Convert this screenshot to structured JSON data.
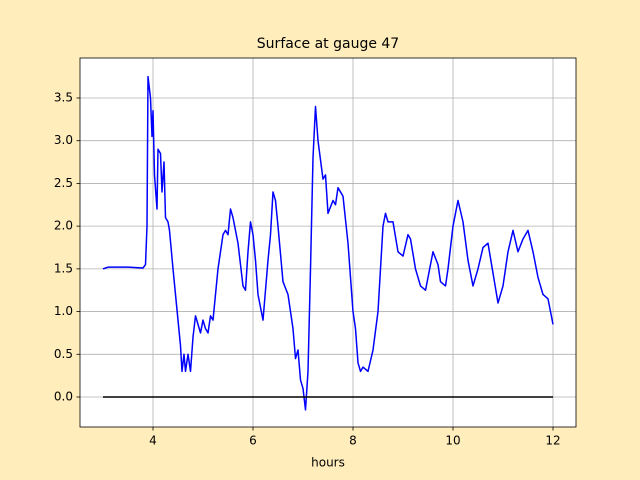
{
  "chart_data": {
    "type": "line",
    "title": "Surface at gauge 47",
    "xlabel": "hours",
    "xlim": [
      2.54,
      12.46
    ],
    "ylim": [
      -0.351,
      3.968
    ],
    "xticks": [
      4,
      6,
      8,
      10,
      12
    ],
    "yticks": [
      {
        "value": 0,
        "label": "0.0"
      },
      0.5,
      {
        "value": 1,
        "label": "1.0"
      },
      1.5,
      {
        "value": 2,
        "label": "2.0"
      },
      2.5,
      {
        "value": 3,
        "label": "3.0"
      },
      3.5
    ],
    "grid": true,
    "series": [
      {
        "color": "#0000ff",
        "x": [
          3.0,
          3.1,
          3.5,
          3.8,
          3.85,
          3.88,
          3.9,
          3.95,
          3.98,
          4.0,
          4.03,
          4.08,
          4.1,
          4.15,
          4.18,
          4.22,
          4.25,
          4.3,
          4.33,
          4.4,
          4.45,
          4.5,
          4.55,
          4.58,
          4.62,
          4.65,
          4.7,
          4.75,
          4.8,
          4.85,
          4.9,
          4.95,
          5.0,
          5.05,
          5.1,
          5.15,
          5.2,
          5.3,
          5.4,
          5.45,
          5.5,
          5.55,
          5.6,
          5.7,
          5.8,
          5.85,
          5.9,
          5.95,
          6.0,
          6.05,
          6.1,
          6.2,
          6.3,
          6.35,
          6.4,
          6.45,
          6.5,
          6.6,
          6.7,
          6.8,
          6.85,
          6.9,
          6.95,
          7.0,
          7.05,
          7.1,
          7.15,
          7.2,
          7.25,
          7.3,
          7.4,
          7.45,
          7.5,
          7.6,
          7.65,
          7.7,
          7.8,
          7.9,
          8.0,
          8.05,
          8.1,
          8.15,
          8.2,
          8.3,
          8.4,
          8.5,
          8.6,
          8.65,
          8.7,
          8.8,
          8.9,
          9.0,
          9.1,
          9.15,
          9.25,
          9.35,
          9.45,
          9.55,
          9.6,
          9.7,
          9.75,
          9.85,
          9.9,
          10.0,
          10.1,
          10.2,
          10.3,
          10.4,
          10.5,
          10.6,
          10.7,
          10.8,
          10.9,
          11.0,
          11.1,
          11.2,
          11.3,
          11.4,
          11.5,
          11.6,
          11.7,
          11.8,
          11.9,
          12.0
        ],
        "values": [
          1.5,
          1.52,
          1.52,
          1.51,
          1.55,
          2.0,
          3.75,
          3.5,
          3.05,
          3.35,
          2.6,
          2.2,
          2.9,
          2.85,
          2.4,
          2.75,
          2.1,
          2.05,
          1.95,
          1.5,
          1.2,
          0.9,
          0.6,
          0.3,
          0.5,
          0.3,
          0.5,
          0.3,
          0.7,
          0.95,
          0.85,
          0.75,
          0.9,
          0.8,
          0.75,
          0.95,
          0.9,
          1.5,
          1.9,
          1.95,
          1.9,
          2.2,
          2.1,
          1.8,
          1.3,
          1.25,
          1.7,
          2.05,
          1.9,
          1.6,
          1.2,
          0.9,
          1.6,
          1.9,
          2.4,
          2.3,
          2.0,
          1.35,
          1.2,
          0.8,
          0.45,
          0.55,
          0.2,
          0.1,
          -0.15,
          0.3,
          1.5,
          2.8,
          3.4,
          3.0,
          2.55,
          2.6,
          2.15,
          2.3,
          2.25,
          2.45,
          2.35,
          1.8,
          1.0,
          0.8,
          0.4,
          0.3,
          0.35,
          0.3,
          0.55,
          1.0,
          2.0,
          2.15,
          2.05,
          2.05,
          1.7,
          1.65,
          1.9,
          1.85,
          1.5,
          1.3,
          1.25,
          1.55,
          1.7,
          1.55,
          1.35,
          1.3,
          1.5,
          2.0,
          2.3,
          2.05,
          1.6,
          1.3,
          1.5,
          1.75,
          1.8,
          1.45,
          1.1,
          1.3,
          1.7,
          1.95,
          1.7,
          1.85,
          1.95,
          1.7,
          1.4,
          1.2,
          1.15,
          0.85
        ]
      },
      {
        "color": "#000000",
        "x": [
          3,
          12
        ],
        "values": [
          0,
          0
        ]
      }
    ]
  }
}
